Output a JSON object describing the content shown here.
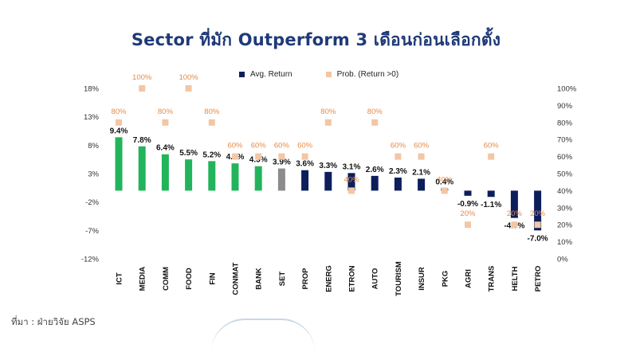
{
  "title": "Sector ที่มัก Outperform 3 เดือนก่อนเลือกตั้ง",
  "source": "ที่มา : ฝ่ายวิจัย ASPS",
  "legend": {
    "avg": "Avg. Return",
    "prob": "Prob. (Return >0)"
  },
  "colors": {
    "outperform": "#22b45b",
    "set": "#8c8c8c",
    "positive": "#0d1e5c",
    "marker": "#f3c6a5",
    "prob_label": "#e88b45"
  },
  "chart_data": {
    "type": "bar",
    "categories": [
      "ICT",
      "MEDIA",
      "COMM",
      "FOOD",
      "FIN",
      "CONMAT",
      "BANK",
      "SET",
      "PROP",
      "ENERG",
      "ETRON",
      "AUTO",
      "TOURISM",
      "INSUR",
      "PKG",
      "AGRI",
      "TRANS",
      "HELTH",
      "PETRO"
    ],
    "series": [
      {
        "name": "Avg. Return",
        "axis": "left",
        "values": [
          9.4,
          7.8,
          6.4,
          5.5,
          5.2,
          4.8,
          4.3,
          3.9,
          3.6,
          3.3,
          3.1,
          2.6,
          2.3,
          2.1,
          0.4,
          -0.9,
          -1.1,
          -4.8,
          -7.0
        ],
        "labels": [
          "9.4%",
          "7.8%",
          "6.4%",
          "5.5%",
          "5.2%",
          "4.8%",
          "4.3%",
          "3.9%",
          "3.6%",
          "3.3%",
          "3.1%",
          "2.6%",
          "2.3%",
          "2.1%",
          "0.4%",
          "-0.9%",
          "-1.1%",
          "-4.8%",
          "-7.0%"
        ]
      },
      {
        "name": "Prob. (Return >0)",
        "axis": "right",
        "values": [
          80,
          100,
          80,
          100,
          80,
          60,
          60,
          60,
          60,
          80,
          40,
          80,
          60,
          60,
          40,
          20,
          60,
          20,
          20
        ],
        "labels": [
          "80%",
          "100%",
          "80%",
          "100%",
          "80%",
          "60%",
          "60%",
          "60%",
          "60%",
          "80%",
          "40%",
          "80%",
          "60%",
          "60%",
          "40%",
          "20%",
          "60%",
          "20%",
          "20%"
        ]
      }
    ],
    "left_axis": {
      "ticks": [
        "18%",
        "13%",
        "8%",
        "3%",
        "-2%",
        "-7%",
        "-12%"
      ],
      "ylim": [
        -12,
        18
      ]
    },
    "right_axis": {
      "ticks": [
        "100%",
        "90%",
        "80%",
        "70%",
        "60%",
        "50%",
        "40%",
        "30%",
        "20%",
        "10%",
        "0%"
      ],
      "ylim": [
        0,
        100
      ]
    },
    "legend_position": "top",
    "grid": false
  }
}
